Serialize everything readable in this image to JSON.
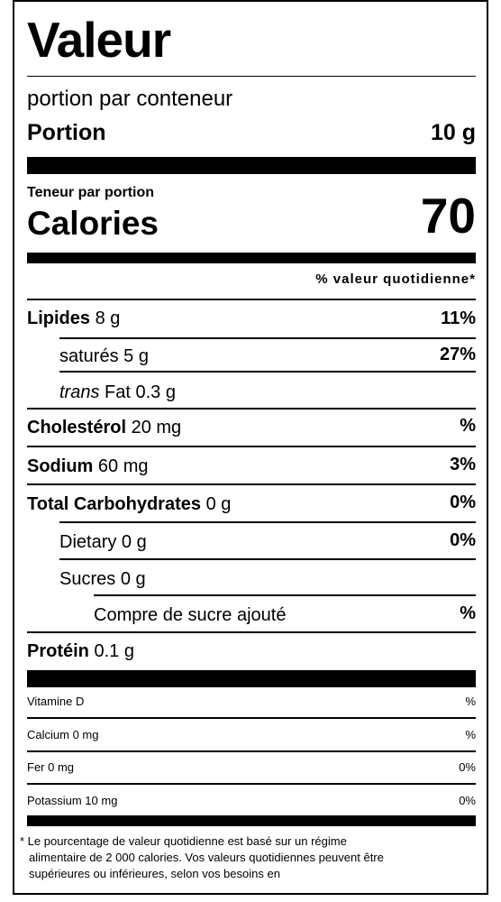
{
  "header": {
    "title": "Valeur",
    "servings_per_container": "portion par conteneur",
    "serving_label": "Portion",
    "serving_size": "10 g"
  },
  "calories": {
    "amount_per": "Teneur par portion",
    "label": "Calories",
    "value": "70"
  },
  "dv_header": "% valeur quotidienne*",
  "nutrients": [
    {
      "name": "Lipides",
      "amount": "8 g",
      "dv": "11%"
    },
    {
      "name": "saturés",
      "amount": "5 g",
      "dv": "27%"
    },
    {
      "name": "trans",
      "amount": "Fat 0.3 g",
      "dv": ""
    },
    {
      "name": "Cholestérol",
      "amount": "20 mg",
      "dv": "%"
    },
    {
      "name": "Sodium",
      "amount": "60 mg",
      "dv": "3%"
    },
    {
      "name": "Total Carbohydrates",
      "amount": "0 g",
      "dv": "0%"
    },
    {
      "name": "Dietary",
      "amount": "0 g",
      "dv": "0%"
    },
    {
      "name": "Sucres",
      "amount": "0 g",
      "dv": ""
    },
    {
      "name": "Compre de sucre ajouté",
      "amount": "",
      "dv": "%"
    },
    {
      "name": "Protéin",
      "amount": "0.1 g",
      "dv": ""
    }
  ],
  "vitamins": [
    {
      "name": "Vitamine D",
      "dv": "%"
    },
    {
      "name": "Calcium 0 mg",
      "dv": "%"
    },
    {
      "name": "Fer 0 mg",
      "dv": "0%"
    },
    {
      "name": "Potassium 10 mg",
      "dv": "0%"
    }
  ],
  "footnote": [
    "* Le pourcentage de valeur quotidienne est basé sur un régime",
    "alimentaire de 2 000 calories. Vos valeurs quotidiennes peuvent être",
    "supérieures ou inférieures, selon vos besoins en"
  ]
}
